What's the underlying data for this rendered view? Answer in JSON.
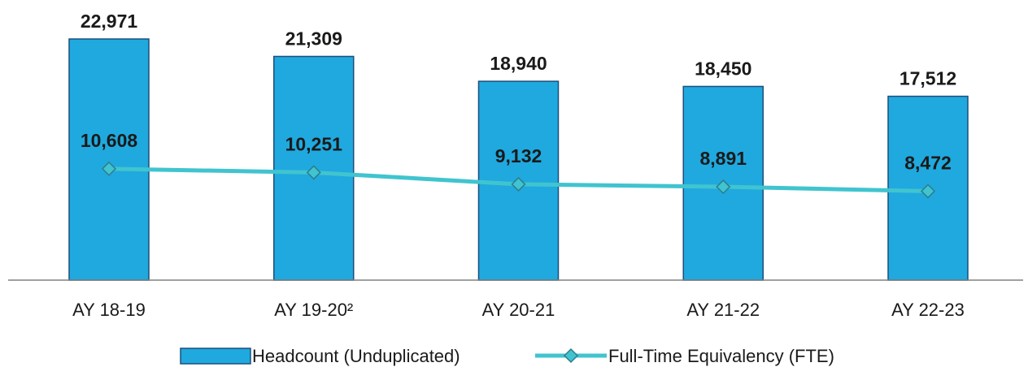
{
  "colors": {
    "bar_fill": "#1FA9DF",
    "bar_stroke": "#1F4E79",
    "line": "#40C4CF",
    "marker_fill": "#40C4CF",
    "marker_stroke": "#2E7D8C",
    "axis": "#808080"
  },
  "chart_data": {
    "type": "bar",
    "categories": [
      "AY 18-19",
      "AY 19-20²",
      "AY 20-21",
      "AY 21-22",
      "AY 22-23"
    ],
    "series": [
      {
        "name": "Headcount (Unduplicated)",
        "type": "bar",
        "values": [
          22971,
          21309,
          18940,
          18450,
          17512
        ],
        "labels": [
          "22,971",
          "21,309",
          "18,940",
          "18,450",
          "17,512"
        ]
      },
      {
        "name": "Full-Time Equivalency (FTE)",
        "type": "line",
        "marker": "diamond",
        "values": [
          10608,
          10251,
          9132,
          8891,
          8472
        ],
        "labels": [
          "10,608",
          "10,251",
          "9,132",
          "8,891",
          "8,472"
        ]
      }
    ],
    "legend": "bottom",
    "grid": false
  }
}
